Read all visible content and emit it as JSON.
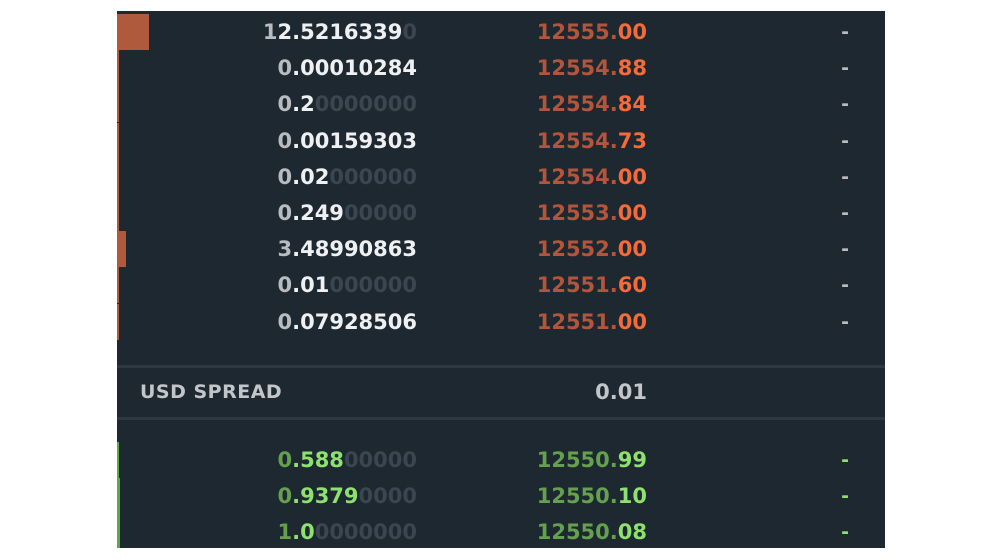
{
  "colors": {
    "panel_bg": "#1e2831",
    "ask_bright": "#f36b3a",
    "ask_dim": "#b3553a",
    "bid_bright": "#8ee06f",
    "bid_dim": "#65a04f",
    "size_bright": "#eef0f2",
    "size_dim": "#b8bcc0",
    "pad_zeros": "#3b4650",
    "ask_depth_bar": "#b05a3d",
    "bid_depth_bar": "#5ca848",
    "my_size_text": "#b9bdc1"
  },
  "asks": [
    {
      "size_lead": "1",
      "size_main": "2.5216339",
      "size_pad": "0",
      "price_int": "12555.",
      "price_dec": "00",
      "my_size": "-",
      "depth": 1.0
    },
    {
      "size_lead": "0",
      "size_main": ".00010284",
      "size_pad": "",
      "price_int": "12554.",
      "price_dec": "88",
      "my_size": "-",
      "depth": 0.0
    },
    {
      "size_lead": "0",
      "size_main": ".2",
      "size_pad": "0000000",
      "price_int": "12554.",
      "price_dec": "84",
      "my_size": "-",
      "depth": 0.02
    },
    {
      "size_lead": "0",
      "size_main": ".00159303",
      "size_pad": "",
      "price_int": "12554.",
      "price_dec": "73",
      "my_size": "-",
      "depth": 0.0
    },
    {
      "size_lead": "0",
      "size_main": ".02",
      "size_pad": "000000",
      "price_int": "12554.",
      "price_dec": "00",
      "my_size": "-",
      "depth": 0.0
    },
    {
      "size_lead": "0",
      "size_main": ".249",
      "size_pad": "00000",
      "price_int": "12553.",
      "price_dec": "00",
      "my_size": "-",
      "depth": 0.02
    },
    {
      "size_lead": "3",
      "size_main": ".48990863",
      "size_pad": "",
      "price_int": "12552.",
      "price_dec": "00",
      "my_size": "-",
      "depth": 0.28
    },
    {
      "size_lead": "0",
      "size_main": ".01",
      "size_pad": "000000",
      "price_int": "12551.",
      "price_dec": "60",
      "my_size": "-",
      "depth": 0.0
    },
    {
      "size_lead": "0",
      "size_main": ".07928506",
      "size_pad": "",
      "price_int": "12551.",
      "price_dec": "00",
      "my_size": "-",
      "depth": 0.01
    }
  ],
  "spread": {
    "label": "USD SPREAD",
    "value": "0.01"
  },
  "bids": [
    {
      "size_lead": "0",
      "size_main": ".588",
      "size_pad": "00000",
      "price_int": "12550.",
      "price_dec": "99",
      "my_size": "-",
      "depth": 0.05
    },
    {
      "size_lead": "0",
      "size_main": ".9379",
      "size_pad": "0000",
      "price_int": "12550.",
      "price_dec": "10",
      "my_size": "-",
      "depth": 0.08
    },
    {
      "size_lead": "1",
      "size_main": ".0",
      "size_pad": "0000000",
      "price_int": "12550.",
      "price_dec": "08",
      "my_size": "-",
      "depth": 0.08
    }
  ]
}
